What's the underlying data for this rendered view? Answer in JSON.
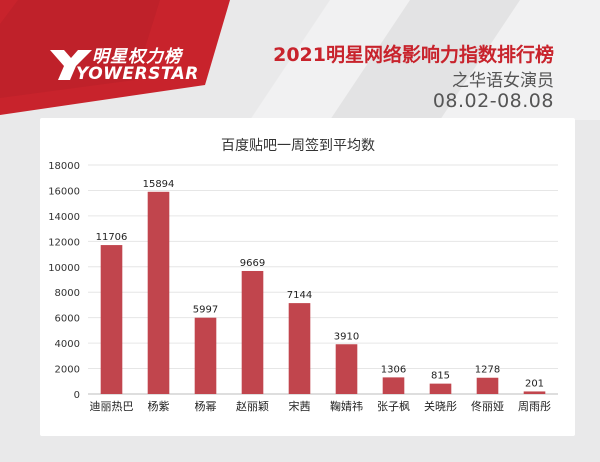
{
  "brand": {
    "name_cn": "明星权力榜",
    "name_en": "YOWERSTAR",
    "accent_color": "#c8232c"
  },
  "header": {
    "title": "2021明星网络影响力指数排行榜",
    "subtitle": "之华语女演员",
    "date_range": "08.02-08.08"
  },
  "chart_data": {
    "type": "bar",
    "title": "百度贴吧一周签到平均数",
    "xlabel": "",
    "ylabel": "",
    "categories": [
      "迪丽热巴",
      "杨紫",
      "杨幂",
      "赵丽颖",
      "宋茜",
      "鞠婧祎",
      "张子枫",
      "关晓彤",
      "佟丽娅",
      "周雨彤"
    ],
    "values": [
      11706,
      15894,
      5997,
      9669,
      7144,
      3910,
      1306,
      815,
      1278,
      201
    ],
    "ylim": [
      0,
      18000
    ],
    "yticks": [
      0,
      2000,
      4000,
      6000,
      8000,
      10000,
      12000,
      14000,
      16000,
      18000
    ],
    "grid": true,
    "bar_color": "#c1454d"
  }
}
